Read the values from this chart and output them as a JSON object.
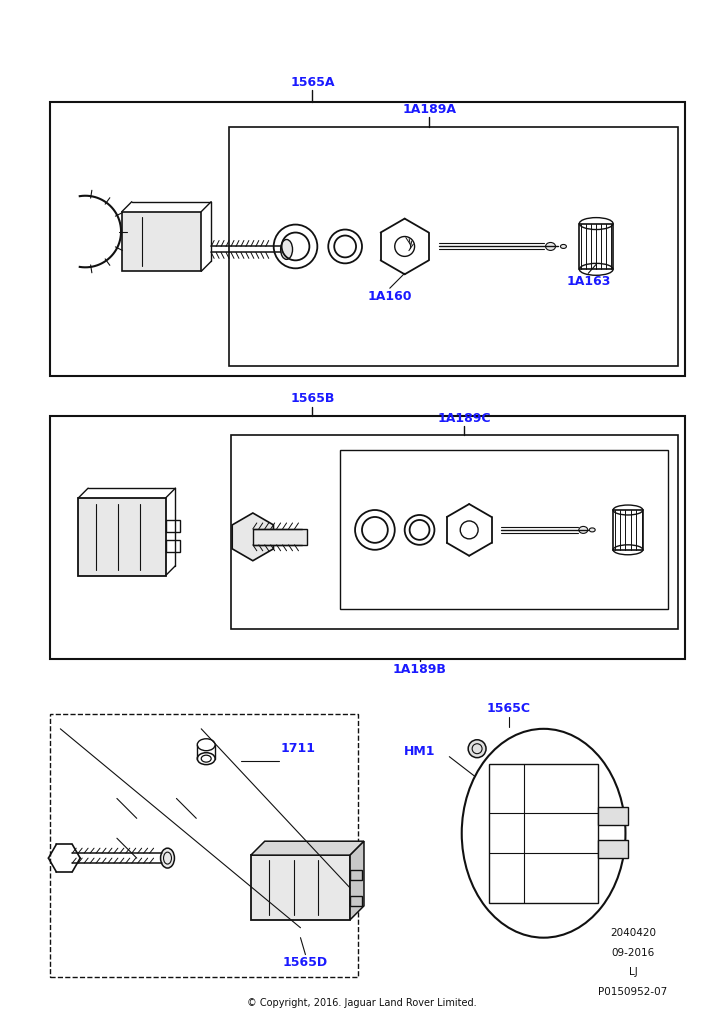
{
  "bg_color": "#ffffff",
  "blue": "#1a1aff",
  "black": "#111111",
  "dark": "#333333",
  "light_fill": "#e8e8e8",
  "copyright": "© Copyright, 2016. Jaguar Land Rover Limited.",
  "doc_info": [
    "2040420",
    "09-2016",
    "LJ",
    "P0150952-07"
  ],
  "fig_w": 7.24,
  "fig_h": 10.24,
  "dpi": 100,
  "label_fs": 9,
  "small_fs": 7.5,
  "tiny_fs": 7
}
